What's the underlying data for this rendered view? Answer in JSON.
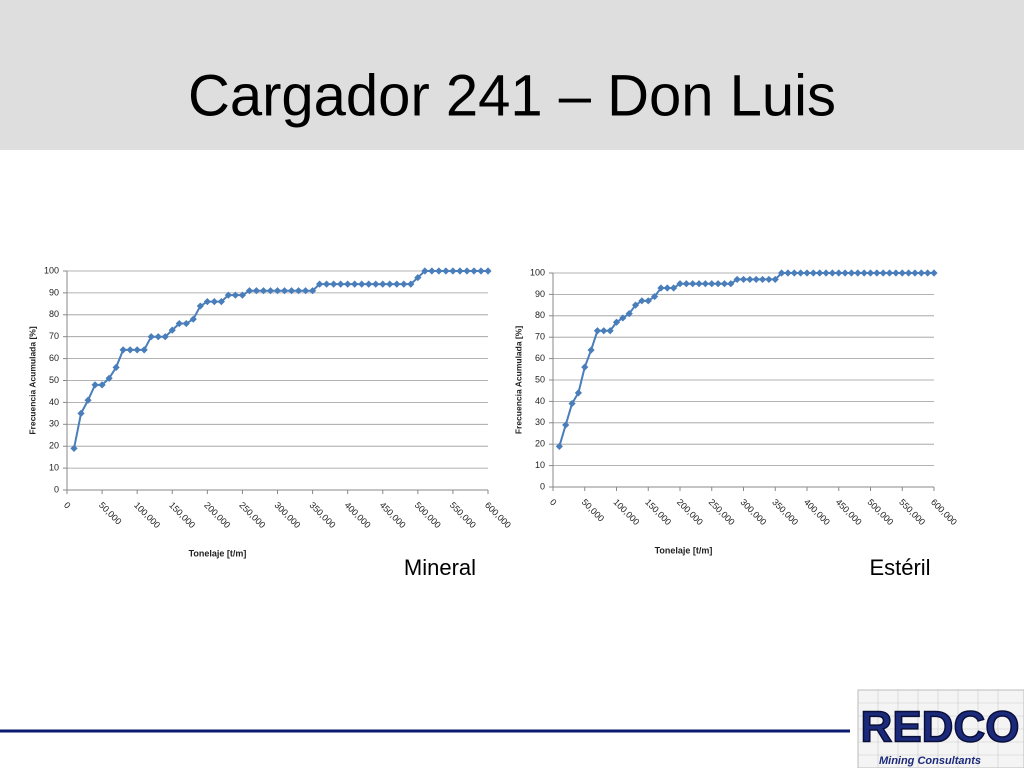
{
  "title": "Cargador 241 – Don Luis",
  "chart_data": [
    {
      "type": "line",
      "caption": "Mineral",
      "x_label": "Tonelaje [t/m]",
      "y_label": "Frecuencia Acumulada [%]",
      "x": [
        10000,
        20000,
        30000,
        40000,
        50000,
        60000,
        70000,
        80000,
        90000,
        100000,
        110000,
        120000,
        130000,
        140000,
        150000,
        160000,
        170000,
        180000,
        190000,
        200000,
        210000,
        220000,
        230000,
        240000,
        250000,
        260000,
        270000,
        280000,
        290000,
        300000,
        310000,
        320000,
        330000,
        340000,
        350000,
        360000,
        370000,
        380000,
        390000,
        400000,
        410000,
        420000,
        430000,
        440000,
        450000,
        460000,
        470000,
        480000,
        490000,
        500000,
        510000,
        520000,
        530000,
        540000,
        550000,
        560000,
        570000,
        580000,
        590000,
        600000
      ],
      "values": [
        19,
        35,
        41,
        48,
        48,
        51,
        56,
        64,
        64,
        64,
        64,
        70,
        70,
        70,
        73,
        76,
        76,
        78,
        84,
        86,
        86,
        86,
        89,
        89,
        89,
        91,
        91,
        91,
        91,
        91,
        91,
        91,
        91,
        91,
        91,
        94,
        94,
        94,
        94,
        94,
        94,
        94,
        94,
        94,
        94,
        94,
        94,
        94,
        94,
        97,
        100,
        100,
        100,
        100,
        100,
        100,
        100,
        100,
        100,
        100
      ],
      "color": "#4a7ebb",
      "xlim": [
        0,
        600000
      ],
      "ylim": [
        0,
        100
      ],
      "xticks": [
        0,
        {
          "value": 50000,
          "label": "50,000"
        },
        {
          "value": 100000,
          "label": "100,000"
        },
        {
          "value": 150000,
          "label": "150,000"
        },
        {
          "value": 200000,
          "label": "200,000"
        },
        {
          "value": 250000,
          "label": "250,000"
        },
        {
          "value": 300000,
          "label": "300,000"
        },
        {
          "value": 350000,
          "label": "350,000"
        },
        {
          "value": 400000,
          "label": "400,000"
        },
        {
          "value": 450000,
          "label": "450,000"
        },
        {
          "value": 500000,
          "label": "500,000"
        },
        {
          "value": 550000,
          "label": "550,000"
        },
        {
          "value": 600000,
          "label": "600,000"
        }
      ],
      "yticks": [
        0,
        10,
        20,
        30,
        40,
        50,
        60,
        70,
        80,
        90,
        100
      ],
      "grid": true
    },
    {
      "type": "line",
      "caption": "Estéril",
      "x_label": "Tonelaje [t/m]",
      "y_label": "Frecuencia Acumulada [%]",
      "x": [
        10000,
        20000,
        30000,
        40000,
        50000,
        60000,
        70000,
        80000,
        90000,
        100000,
        110000,
        120000,
        130000,
        140000,
        150000,
        160000,
        170000,
        180000,
        190000,
        200000,
        210000,
        220000,
        230000,
        240000,
        250000,
        260000,
        270000,
        280000,
        290000,
        300000,
        310000,
        320000,
        330000,
        340000,
        350000,
        360000,
        370000,
        380000,
        390000,
        400000,
        410000,
        420000,
        430000,
        440000,
        450000,
        460000,
        470000,
        480000,
        490000,
        500000,
        510000,
        520000,
        530000,
        540000,
        550000,
        560000,
        570000,
        580000,
        590000,
        600000
      ],
      "values": [
        19,
        29,
        39,
        44,
        56,
        64,
        73,
        73,
        73,
        77,
        79,
        81,
        85,
        87,
        87,
        89,
        93,
        93,
        93,
        95,
        95,
        95,
        95,
        95,
        95,
        95,
        95,
        95,
        97,
        97,
        97,
        97,
        97,
        97,
        97,
        100,
        100,
        100,
        100,
        100,
        100,
        100,
        100,
        100,
        100,
        100,
        100,
        100,
        100,
        100,
        100,
        100,
        100,
        100,
        100,
        100,
        100,
        100,
        100,
        100
      ],
      "color": "#4a7ebb",
      "xlim": [
        0,
        600000
      ],
      "ylim": [
        0,
        100
      ],
      "xticks": [
        0,
        {
          "value": 50000,
          "label": "50,000"
        },
        {
          "value": 100000,
          "label": "100,000"
        },
        {
          "value": 150000,
          "label": "150,000"
        },
        {
          "value": 200000,
          "label": "200,000"
        },
        {
          "value": 250000,
          "label": "250,000"
        },
        {
          "value": 300000,
          "label": "300,000"
        },
        {
          "value": 350000,
          "label": "350,000"
        },
        {
          "value": 400000,
          "label": "400,000"
        },
        {
          "value": 450000,
          "label": "450,000"
        },
        {
          "value": 500000,
          "label": "500,000"
        },
        {
          "value": 550000,
          "label": "550,000"
        },
        {
          "value": 600000,
          "label": "600,000"
        }
      ],
      "yticks": [
        0,
        10,
        20,
        30,
        40,
        50,
        60,
        70,
        80,
        90,
        100
      ],
      "grid": true
    }
  ],
  "logo": {
    "name": "REDCO",
    "tagline": "Mining Consultants"
  }
}
